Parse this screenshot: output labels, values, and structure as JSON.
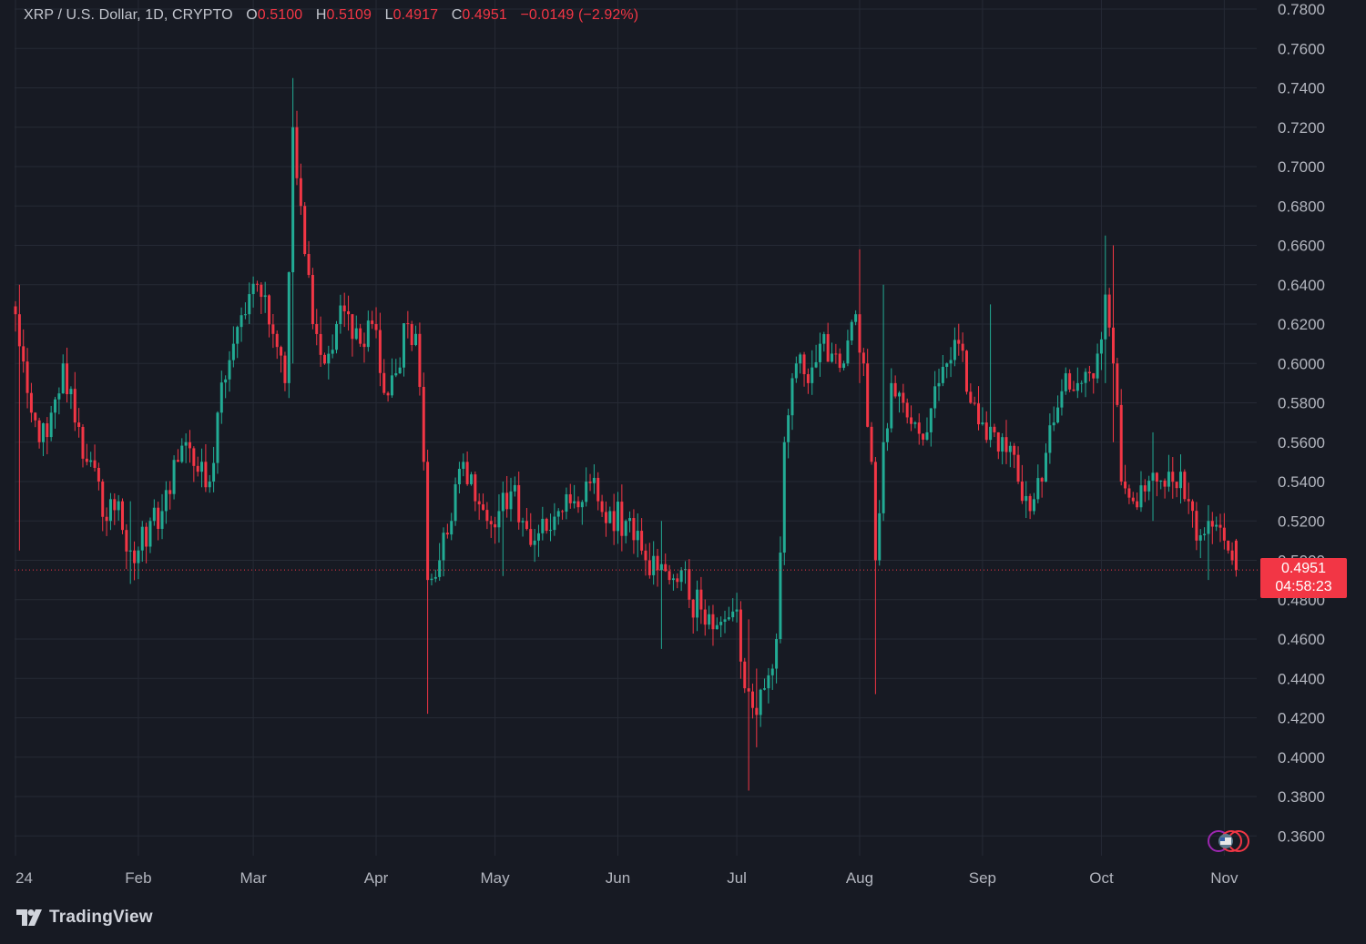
{
  "legend": {
    "symbol": "XRP / U.S. Dollar, 1D, CRYPTO",
    "open_label": "O",
    "open": "0.5100",
    "high_label": "H",
    "high": "0.5109",
    "low_label": "L",
    "low": "0.4917",
    "close_label": "C",
    "close": "0.4951",
    "change": "−0.0149 (−2.92%)"
  },
  "last_price": {
    "value": "0.4951",
    "countdown": "04:58:23"
  },
  "brand": {
    "name": "TradingView",
    "icon": "tradingview-logo-icon"
  },
  "colors": {
    "up": "#22ab94",
    "down": "#f23645",
    "background": "#171a23",
    "grid": "#262a35",
    "text": "#b2b5be"
  },
  "chart_data": {
    "type": "candlestick",
    "title": "",
    "interval": "1D",
    "grid": true,
    "ylim": [
      0.34,
      0.78
    ],
    "y_ticks": [
      "0.7800",
      "0.7600",
      "0.7400",
      "0.7200",
      "0.7000",
      "0.6800",
      "0.6600",
      "0.6400",
      "0.6200",
      "0.6000",
      "0.5800",
      "0.5600",
      "0.5400",
      "0.5200",
      "0.5000",
      "0.4800",
      "0.4600",
      "0.4400",
      "0.4200",
      "0.4000",
      "0.3800",
      "0.3600"
    ],
    "x_ticks": [
      "24",
      "Feb",
      "Mar",
      "Apr",
      "May",
      "Jun",
      "Jul",
      "Aug",
      "Sep",
      "Oct",
      "Nov"
    ],
    "x_tick_days": [
      0,
      31,
      60,
      91,
      121,
      152,
      182,
      213,
      244,
      274,
      305
    ],
    "anchors": [
      [
        0,
        0.625
      ],
      [
        3,
        0.585
      ],
      [
        6,
        0.56
      ],
      [
        9,
        0.575
      ],
      [
        12,
        0.6
      ],
      [
        15,
        0.57
      ],
      [
        18,
        0.55
      ],
      [
        21,
        0.54
      ],
      [
        23,
        0.52
      ],
      [
        26,
        0.53
      ],
      [
        29,
        0.505
      ],
      [
        31,
        0.505
      ],
      [
        34,
        0.52
      ],
      [
        37,
        0.525
      ],
      [
        41,
        0.55
      ],
      [
        43,
        0.56
      ],
      [
        46,
        0.545
      ],
      [
        49,
        0.54
      ],
      [
        51,
        0.575
      ],
      [
        55,
        0.61
      ],
      [
        58,
        0.625
      ],
      [
        61,
        0.64
      ],
      [
        65,
        0.615
      ],
      [
        68,
        0.59
      ],
      [
        70,
        0.72
      ],
      [
        72,
        0.68
      ],
      [
        75,
        0.62
      ],
      [
        78,
        0.6
      ],
      [
        81,
        0.62
      ],
      [
        84,
        0.625
      ],
      [
        87,
        0.61
      ],
      [
        90,
        0.62
      ],
      [
        93,
        0.585
      ],
      [
        96,
        0.595
      ],
      [
        99,
        0.62
      ],
      [
        101,
        0.615
      ],
      [
        103,
        0.55
      ],
      [
        104,
        0.49
      ],
      [
        107,
        0.5
      ],
      [
        110,
        0.52
      ],
      [
        113,
        0.55
      ],
      [
        116,
        0.53
      ],
      [
        119,
        0.52
      ],
      [
        122,
        0.525
      ],
      [
        125,
        0.535
      ],
      [
        128,
        0.52
      ],
      [
        131,
        0.51
      ],
      [
        134,
        0.515
      ],
      [
        137,
        0.525
      ],
      [
        141,
        0.53
      ],
      [
        144,
        0.54
      ],
      [
        147,
        0.53
      ],
      [
        150,
        0.525
      ],
      [
        154,
        0.52
      ],
      [
        157,
        0.515
      ],
      [
        159,
        0.5
      ],
      [
        162,
        0.495
      ],
      [
        165,
        0.49
      ],
      [
        168,
        0.495
      ],
      [
        170,
        0.48
      ],
      [
        173,
        0.475
      ],
      [
        176,
        0.465
      ],
      [
        179,
        0.47
      ],
      [
        182,
        0.475
      ],
      [
        184,
        0.435
      ],
      [
        186,
        0.425
      ],
      [
        189,
        0.435
      ],
      [
        192,
        0.46
      ],
      [
        194,
        0.56
      ],
      [
        197,
        0.6
      ],
      [
        200,
        0.59
      ],
      [
        203,
        0.61
      ],
      [
        206,
        0.605
      ],
      [
        209,
        0.6
      ],
      [
        212,
        0.625
      ],
      [
        214,
        0.6
      ],
      [
        216,
        0.55
      ],
      [
        217,
        0.5
      ],
      [
        219,
        0.56
      ],
      [
        221,
        0.59
      ],
      [
        224,
        0.58
      ],
      [
        227,
        0.57
      ],
      [
        230,
        0.565
      ],
      [
        233,
        0.59
      ],
      [
        235,
        0.6
      ],
      [
        238,
        0.61
      ],
      [
        241,
        0.58
      ],
      [
        244,
        0.57
      ],
      [
        247,
        0.565
      ],
      [
        250,
        0.555
      ],
      [
        253,
        0.54
      ],
      [
        256,
        0.525
      ],
      [
        259,
        0.54
      ],
      [
        262,
        0.57
      ],
      [
        265,
        0.595
      ],
      [
        268,
        0.59
      ],
      [
        271,
        0.595
      ],
      [
        273,
        0.605
      ],
      [
        275,
        0.635
      ],
      [
        277,
        0.6
      ],
      [
        279,
        0.54
      ],
      [
        282,
        0.53
      ],
      [
        285,
        0.535
      ],
      [
        288,
        0.54
      ],
      [
        291,
        0.545
      ],
      [
        294,
        0.545
      ],
      [
        296,
        0.53
      ],
      [
        298,
        0.51
      ],
      [
        301,
        0.52
      ],
      [
        303,
        0.518
      ],
      [
        305,
        0.51
      ],
      [
        307,
        0.5
      ],
      [
        308,
        0.4951
      ]
    ],
    "wick_overrides": [
      [
        1,
        0.64,
        0.505
      ],
      [
        29,
        0.53,
        0.488
      ],
      [
        70,
        0.745,
        0.6
      ],
      [
        104,
        0.52,
        0.422
      ],
      [
        123,
        0.54,
        0.492
      ],
      [
        163,
        0.52,
        0.455
      ],
      [
        185,
        0.47,
        0.383
      ],
      [
        187,
        0.445,
        0.405
      ],
      [
        213,
        0.658,
        0.59
      ],
      [
        217,
        0.52,
        0.432
      ],
      [
        219,
        0.64,
        0.52
      ],
      [
        246,
        0.63,
        0.56
      ],
      [
        275,
        0.665,
        0.59
      ],
      [
        277,
        0.66,
        0.56
      ],
      [
        287,
        0.565,
        0.52
      ],
      [
        301,
        0.528,
        0.49
      ]
    ],
    "last": {
      "open": 0.51,
      "high": 0.5109,
      "low": 0.4917,
      "close": 0.4951
    }
  }
}
